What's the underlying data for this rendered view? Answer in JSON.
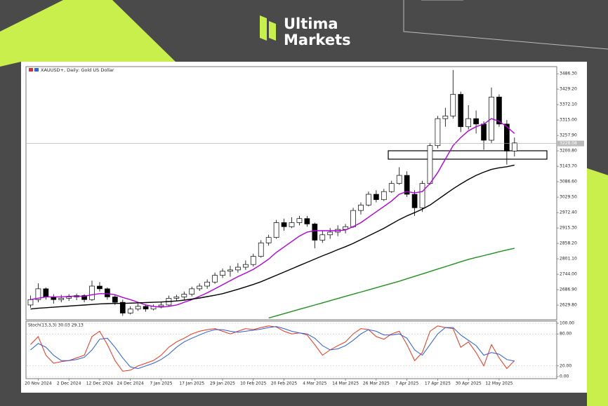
{
  "header": {
    "brand_line1": "Ultima",
    "brand_line2": "Markets"
  },
  "chart_data": [
    {
      "type": "candlestick",
      "title": "XAUUSD+, Daily: Gold US Dollar",
      "categories": [
        null,
        "20 Nov 2024",
        null,
        null,
        null,
        "2 Dec 2024",
        null,
        null,
        null,
        "12 Dec 2024",
        null,
        null,
        null,
        "24 Dec 2024",
        null,
        null,
        null,
        "7 Jan 2025",
        null,
        null,
        null,
        "17 Jan 2025",
        null,
        null,
        null,
        "29 Jan 2025",
        null,
        null,
        null,
        "10 Feb 2025",
        null,
        null,
        null,
        "20 Feb 2025",
        null,
        null,
        null,
        "4 Mar 2025",
        null,
        null,
        null,
        "14 Mar 2025",
        null,
        null,
        null,
        "26 Mar 2025",
        null,
        null,
        null,
        "7 Apr 2025",
        null,
        null,
        null,
        "17 Apr 2025",
        null,
        null,
        null,
        "30 Apr 2025",
        null,
        null,
        null,
        "12 May 2025",
        null,
        null
      ],
      "open": [
        2630,
        2650,
        2690,
        2660,
        2650,
        2655,
        2660,
        2665,
        2650,
        2700,
        2690,
        2660,
        2640,
        2600,
        2615,
        2625,
        2615,
        2625,
        2630,
        2655,
        2660,
        2670,
        2690,
        2700,
        2715,
        2740,
        2755,
        2760,
        2770,
        2780,
        2810,
        2860,
        2880,
        2935,
        2920,
        2935,
        2950,
        2930,
        2870,
        2890,
        2900,
        2910,
        2920,
        2980,
        3000,
        3040,
        3020,
        3050,
        3080,
        3110,
        3040,
        2990,
        3080,
        3220,
        3320,
        3330,
        3410,
        3290,
        3320,
        3300,
        3240,
        3400,
        3300,
        3200
      ],
      "high": [
        2665,
        2710,
        2695,
        2670,
        2668,
        2670,
        2672,
        2670,
        2720,
        2715,
        2695,
        2668,
        2650,
        2625,
        2635,
        2632,
        2632,
        2640,
        2665,
        2668,
        2680,
        2698,
        2710,
        2725,
        2750,
        2765,
        2775,
        2785,
        2795,
        2820,
        2870,
        2890,
        2945,
        2950,
        2955,
        2960,
        2960,
        2935,
        2905,
        2915,
        2925,
        2930,
        2990,
        3010,
        3050,
        3055,
        3060,
        3090,
        3140,
        3125,
        3055,
        3090,
        3230,
        3330,
        3360,
        3500,
        3420,
        3370,
        3350,
        3310,
        3435,
        3410,
        3315,
        3250
      ],
      "low": [
        2620,
        2640,
        2650,
        2635,
        2640,
        2645,
        2648,
        2640,
        2645,
        2680,
        2650,
        2630,
        2590,
        2595,
        2608,
        2605,
        2610,
        2618,
        2625,
        2645,
        2650,
        2662,
        2682,
        2690,
        2708,
        2730,
        2735,
        2750,
        2760,
        2772,
        2805,
        2850,
        2875,
        2905,
        2915,
        2925,
        2920,
        2840,
        2860,
        2875,
        2885,
        2895,
        2915,
        2965,
        2995,
        3010,
        3015,
        3045,
        3075,
        3030,
        2960,
        2975,
        3075,
        3210,
        3290,
        3320,
        3270,
        3280,
        3265,
        3205,
        3230,
        3290,
        3150,
        3180
      ],
      "close": [
        2650,
        2690,
        2660,
        2650,
        2655,
        2660,
        2665,
        2650,
        2700,
        2690,
        2660,
        2640,
        2600,
        2615,
        2625,
        2615,
        2625,
        2630,
        2655,
        2660,
        2670,
        2690,
        2700,
        2715,
        2740,
        2755,
        2760,
        2770,
        2780,
        2810,
        2860,
        2880,
        2935,
        2920,
        2935,
        2950,
        2930,
        2870,
        2890,
        2900,
        2910,
        2920,
        2980,
        3000,
        3040,
        3020,
        3050,
        3080,
        3110,
        3040,
        2990,
        3080,
        3220,
        3320,
        3330,
        3410,
        3290,
        3320,
        3300,
        3240,
        3400,
        3300,
        3200,
        3230
      ],
      "overlays": [
        {
          "color": "#b000d8",
          "values": [
            2650,
            2655,
            2660,
            2660,
            2660,
            2662,
            2663,
            2662,
            2668,
            2672,
            2672,
            2668,
            2658,
            2650,
            2640,
            2630,
            2625,
            2622,
            2625,
            2630,
            2640,
            2650,
            2662,
            2675,
            2690,
            2705,
            2720,
            2735,
            2748,
            2762,
            2780,
            2800,
            2825,
            2845,
            2865,
            2885,
            2900,
            2905,
            2905,
            2905,
            2905,
            2908,
            2920,
            2935,
            2955,
            2975,
            2995,
            3015,
            3040,
            3050,
            3045,
            3050,
            3080,
            3120,
            3170,
            3220,
            3250,
            3275,
            3290,
            3300,
            3320,
            3310,
            3290,
            3265
          ]
        },
        {
          "color": "#000000",
          "values": [
            2615,
            2618,
            2620,
            2622,
            2624,
            2626,
            2628,
            2630,
            2632,
            2634,
            2635,
            2636,
            2636,
            2637,
            2638,
            2639,
            2640,
            2641,
            2643,
            2645,
            2648,
            2652,
            2656,
            2661,
            2666,
            2672,
            2680,
            2688,
            2697,
            2706,
            2716,
            2728,
            2740,
            2752,
            2764,
            2776,
            2788,
            2800,
            2812,
            2823,
            2835,
            2846,
            2858,
            2872,
            2886,
            2900,
            2914,
            2930,
            2946,
            2960,
            2972,
            2985,
            3000,
            3020,
            3040,
            3060,
            3078,
            3095,
            3110,
            3122,
            3132,
            3138,
            3142,
            3148
          ]
        },
        {
          "color": "#1f8f1f",
          "values": [
            null,
            null,
            null,
            null,
            null,
            null,
            null,
            null,
            null,
            null,
            null,
            null,
            null,
            null,
            null,
            null,
            null,
            null,
            null,
            null,
            null,
            null,
            null,
            null,
            null,
            null,
            null,
            null,
            null,
            null,
            null,
            2582,
            2590,
            2598,
            2606,
            2614,
            2622,
            2630,
            2638,
            2646,
            2654,
            2662,
            2670,
            2678,
            2686,
            2694,
            2702,
            2710,
            2718,
            2727,
            2736,
            2745,
            2754,
            2763,
            2772,
            2781,
            2790,
            2799,
            2806,
            2813,
            2820,
            2827,
            2834,
            2840
          ]
        }
      ],
      "current_price": {
        "value": 3228.08,
        "label": "3228.08"
      },
      "ylim": [
        2578,
        3510
      ],
      "yticks": [
        {
          "value": 3486.3,
          "label": "3486.30"
        },
        {
          "value": 3429.2,
          "label": "3429.20"
        },
        {
          "value": 3372.1,
          "label": "3372.10"
        },
        {
          "value": 3315,
          "label": "3315.00"
        },
        {
          "value": 3257.9,
          "label": "3257.90"
        },
        {
          "value": 3200.8,
          "label": "3200.80"
        },
        {
          "value": 3143.7,
          "label": "3143.70"
        },
        {
          "value": 3086.6,
          "label": "3086.60"
        },
        {
          "value": 3029.5,
          "label": "3029.50"
        },
        {
          "value": 2972.4,
          "label": "2972.40"
        },
        {
          "value": 2915.3,
          "label": "2915.30"
        },
        {
          "value": 2858.2,
          "label": "2858.20"
        },
        {
          "value": 2801.1,
          "label": "2801.10"
        },
        {
          "value": 2744,
          "label": "2744.00"
        },
        {
          "value": 2686.9,
          "label": "2686.90"
        },
        {
          "value": 2629.8,
          "label": "2629.80"
        }
      ]
    },
    {
      "type": "line",
      "title": "Stoch(13,3,3) 30.03 29.13",
      "series": [
        {
          "color": "#e8331c",
          "values": [
            60,
            75,
            40,
            25,
            28,
            30,
            35,
            40,
            75,
            85,
            60,
            30,
            10,
            12,
            20,
            25,
            30,
            40,
            55,
            65,
            72,
            80,
            85,
            88,
            90,
            85,
            80,
            85,
            90,
            88,
            92,
            95,
            93,
            85,
            80,
            82,
            78,
            60,
            40,
            50,
            58,
            65,
            80,
            90,
            88,
            75,
            70,
            80,
            85,
            60,
            30,
            45,
            85,
            95,
            92,
            90,
            55,
            65,
            45,
            20,
            60,
            35,
            15,
            30
          ]
        },
        {
          "color": "#2a5bd7",
          "values": [
            50,
            62,
            55,
            40,
            30,
            30,
            32,
            36,
            50,
            70,
            72,
            55,
            35,
            18,
            15,
            20,
            25,
            32,
            42,
            55,
            65,
            72,
            78,
            84,
            88,
            88,
            85,
            83,
            85,
            87,
            89,
            92,
            94,
            90,
            85,
            82,
            80,
            72,
            58,
            50,
            52,
            58,
            68,
            80,
            88,
            85,
            78,
            78,
            80,
            72,
            50,
            40,
            60,
            80,
            92,
            92,
            78,
            68,
            58,
            40,
            45,
            42,
            32,
            29
          ]
        }
      ],
      "ylim": [
        0,
        100
      ],
      "yticks": [
        {
          "value": 100,
          "label": "100.00"
        },
        {
          "value": 80,
          "label": "80.00"
        },
        {
          "value": 20,
          "label": "20.00"
        },
        {
          "value": 0,
          "label": "0.00"
        }
      ]
    }
  ]
}
